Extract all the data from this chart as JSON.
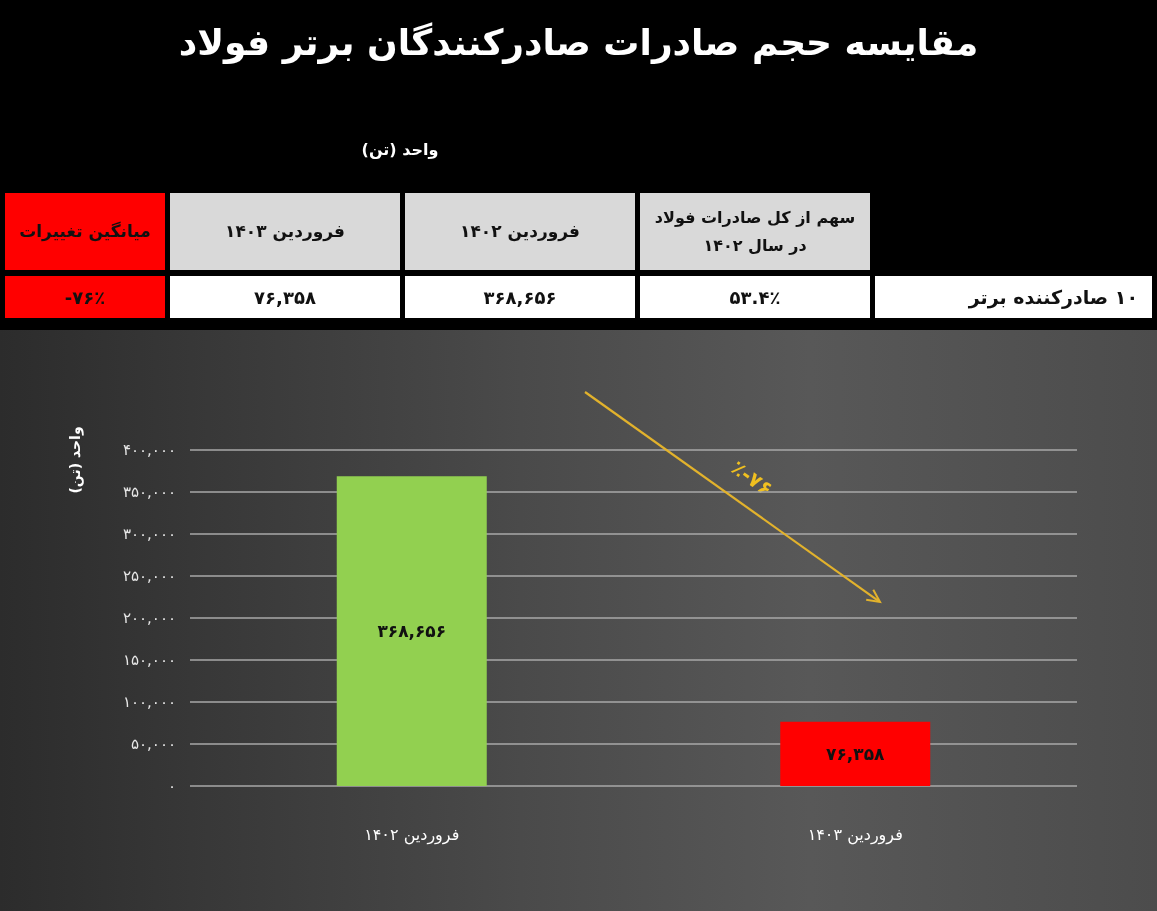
{
  "chart_data": {
    "type": "bar",
    "title": "مقایسه حجم صادرات صادرکنندگان برتر فولاد",
    "ylabel": "واحد (تن)",
    "categories": [
      "فروردین ۱۴۰۲",
      "فروردین ۱۴۰۳"
    ],
    "values": [
      368656,
      76358
    ],
    "colors": [
      "#92d050",
      "#ff0000"
    ],
    "value_labels": [
      "۳۶۸,۶۵۶",
      "۷۶,۳۵۸"
    ],
    "ylim": [
      0,
      400000
    ],
    "yticks": [
      {
        "value": 0,
        "label": "۰"
      },
      {
        "value": 50000,
        "label": "۵۰,۰۰۰"
      },
      {
        "value": 100000,
        "label": "۱۰۰,۰۰۰"
      },
      {
        "value": 150000,
        "label": "۱۵۰,۰۰۰"
      },
      {
        "value": 200000,
        "label": "۲۰۰,۰۰۰"
      },
      {
        "value": 250000,
        "label": "۲۵۰,۰۰۰"
      },
      {
        "value": 300000,
        "label": "۳۰۰,۰۰۰"
      },
      {
        "value": 350000,
        "label": "۳۵۰,۰۰۰"
      },
      {
        "value": 400000,
        "label": "۴۰۰,۰۰۰"
      }
    ],
    "grid": "y",
    "annotations": [
      "واحد (تن)",
      "میانگین تغییرات",
      "فروردین ۱۴۰۳",
      "فروردین ۱۴۰۲",
      "سهم از کل صادرات فولاد در سال ۱۴۰۲",
      "-۷۶٪",
      "۷۶,۳۵۸",
      "۳۶۸,۶۵۶",
      "۵۳.۴٪",
      "۱۰ صادرکننده برتر",
      "٪-۷۶"
    ]
  }
}
